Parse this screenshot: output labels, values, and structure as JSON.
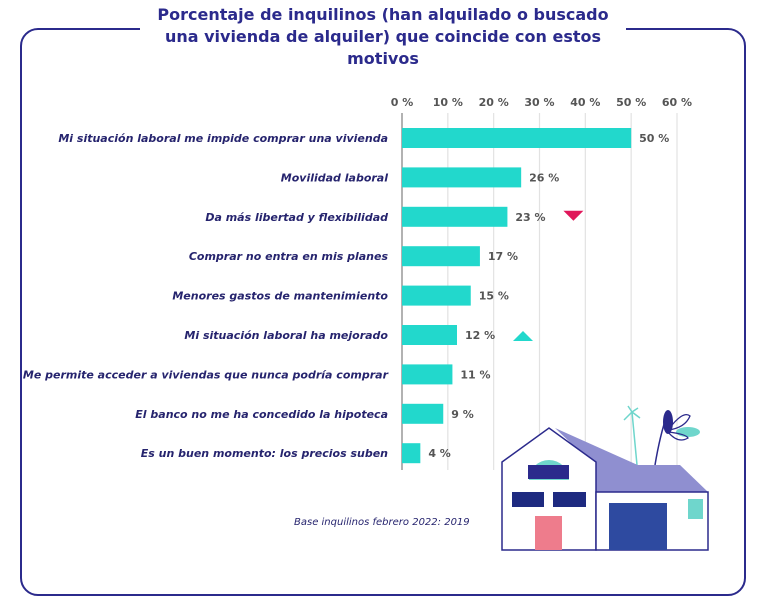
{
  "chart_data": {
    "type": "bar",
    "orientation": "horizontal",
    "title": "Porcentaje de inquilinos (han alquilado o buscado una vivienda de alquiler) que coincide con estos motivos",
    "categories": [
      "Mi situación laboral me impide comprar una vivienda",
      "Movilidad laboral",
      "Da más libertad y flexibilidad",
      "Comprar no entra en mis planes",
      "Menores gastos de mantenimiento",
      "Mi situación laboral ha mejorado",
      "Me permite acceder a viviendas que nunca podría comprar",
      "El banco no me ha concedido la hipoteca",
      "Es un buen momento: los precios suben"
    ],
    "values": [
      50,
      26,
      23,
      17,
      15,
      12,
      11,
      9,
      4
    ],
    "value_labels": [
      "50 %",
      "26 %",
      "23 %",
      "17 %",
      "15 %",
      "12 %",
      "11 %",
      "9 %",
      "4 %"
    ],
    "trend_markers": {
      "2": "down",
      "5": "up"
    },
    "xlim": [
      0,
      60
    ],
    "xticks": [
      "0 %",
      "10 %",
      "20 %",
      "30 %",
      "40 %",
      "50 %",
      "60 %"
    ],
    "axis_position": "top",
    "grid": true,
    "colors": {
      "bar": "#22d8cc",
      "down": "#e0175a",
      "up": "#22d8cc",
      "title": "#2b2a8c"
    },
    "note": "Base inquilinos febrero 2022: 2019"
  }
}
